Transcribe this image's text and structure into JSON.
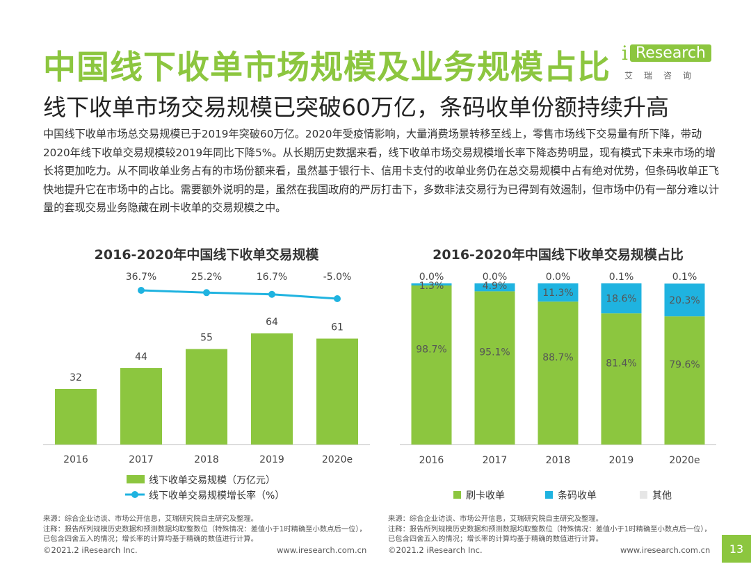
{
  "header": {
    "title": "中国线下收单市场规模及业务规模占比",
    "subtitle": "线下收单市场交易规模已突破60万亿，条码收单份额持续升高",
    "logo_mark": "i",
    "logo_text": "Research",
    "logo_sub": "艾瑞咨询"
  },
  "paragraph": "中国线下收单市场总交易规模已于2019年突破60万亿。2020年受疫情影响，大量消费场景转移至线上，零售市场线下交易量有所下降，带动2020年线下收单交易规模较2019年同比下降5%。从长期历史数据来看，线下收单市场交易规模增长率下降态势明显，现有模式下未来市场的增长将更加吃力。从不同收单业务占有的市场份额来看，虽然基于银行卡、信用卡支付的收单业务仍在总交易规模中占有绝对优势，但条码收单正飞快地提升它在市场中的占比。需要额外说明的是，虽然在我国政府的严厉打击下，多数非法交易行为已得到有效遏制，但市场中仍有一部分难以计量的套现交易业务隐藏在刷卡收单的交易规模之中。",
  "colors": {
    "green": "#8cc63f",
    "cyan": "#1fb3e0",
    "other": "#e6e6e6"
  },
  "chart_data": [
    {
      "type": "bar",
      "title": "2016-2020年中国线下收单交易规模",
      "categories": [
        "2016",
        "2017",
        "2018",
        "2019",
        "2020e"
      ],
      "series": [
        {
          "name": "线下收单交易规模（万亿元）",
          "kind": "bar",
          "values": [
            32,
            44,
            55,
            64,
            61
          ]
        },
        {
          "name": "线下收单交易规模增长率（%）",
          "kind": "line",
          "values": [
            null,
            36.7,
            25.2,
            16.7,
            -5.0
          ],
          "labels": [
            "",
            "36.7%",
            "25.2%",
            "16.7%",
            "-5.0%"
          ]
        }
      ],
      "value_labels": [
        "32",
        "44",
        "55",
        "64",
        "61"
      ],
      "ylim": [
        0,
        100
      ],
      "legend": "bottom"
    },
    {
      "type": "bar",
      "stacked": true,
      "title": "2016-2020年中国线下收单交易规模占比",
      "categories": [
        "2016",
        "2017",
        "2018",
        "2019",
        "2020e"
      ],
      "series": [
        {
          "name": "刷卡收单",
          "values": [
            98.7,
            95.1,
            88.7,
            81.4,
            79.6
          ],
          "labels": [
            "98.7%",
            "95.1%",
            "88.7%",
            "81.4%",
            "79.6%"
          ]
        },
        {
          "name": "条码收单",
          "values": [
            1.3,
            4.9,
            11.3,
            18.6,
            20.3
          ],
          "labels": [
            "1.3%",
            "4.9%",
            "11.3%",
            "18.6%",
            "20.3%"
          ]
        },
        {
          "name": "其他",
          "values": [
            0.0,
            0.0,
            0.0,
            0.1,
            0.1
          ],
          "labels": [
            "0.0%",
            "0.0%",
            "0.0%",
            "0.1%",
            "0.1%"
          ]
        }
      ],
      "ylim": [
        0,
        100
      ],
      "legend": "bottom"
    }
  ],
  "notes": {
    "left": "来源：综合企业访谈、市场公开信息，艾瑞研究院自主研究及整理。\n注释：报告所列规模历史数据和预测数据均取整数位（特殊情况：差值小于1时精确至小数点后一位），已包含四舍五入的情况；增长率的计算均基于精确的数值进行计算。",
    "right": "来源：综合企业访谈、市场公开信息，艾瑞研究院自主研究及整理。\n注释：报告所列规模历史数据和预测数据均取整数位（特殊情况：差值小于1时精确至小数点后一位），已包含四舍五入的情况；增长率的计算均基于精确的数值进行计算。"
  },
  "footer": {
    "left_copyright": "©2021.2 iResearch Inc.",
    "left_url": "www.iresearch.com.cn",
    "right_copyright": "©2021.2 iResearch Inc.",
    "right_url": "www.iresearch.com.cn",
    "page_number": "13"
  }
}
